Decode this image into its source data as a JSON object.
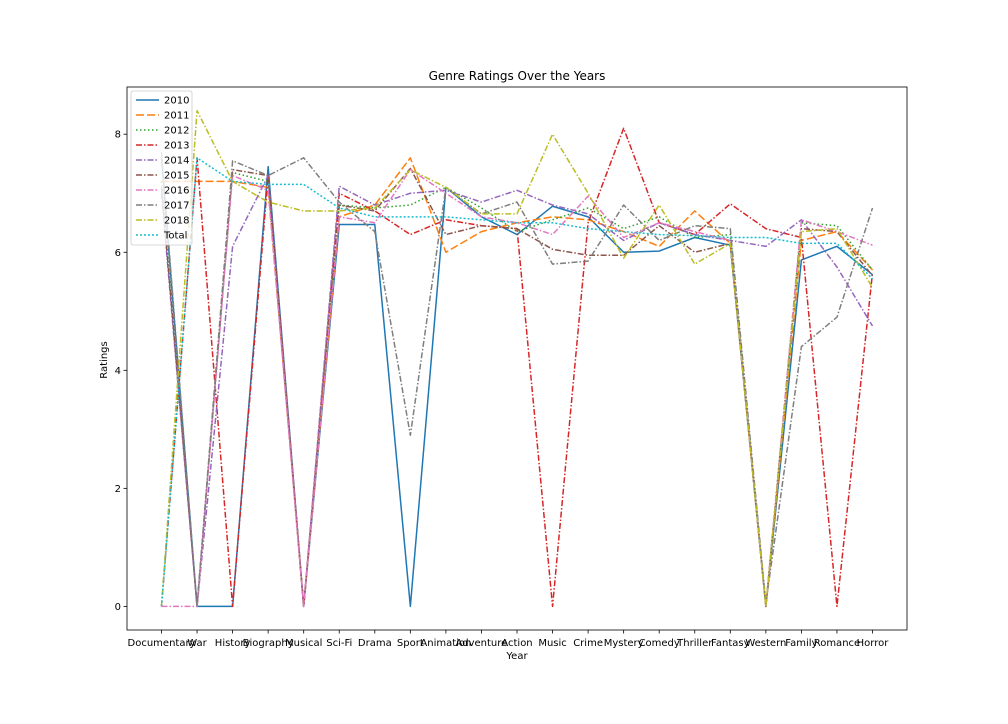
{
  "chart_data": {
    "type": "line",
    "title": "Genre Ratings Over the Years",
    "xlabel": "Year",
    "ylabel": "Ratings",
    "ylim": [
      -0.4,
      8.8
    ],
    "yticks": [
      0,
      2,
      4,
      6,
      8
    ],
    "grid": false,
    "legend_position": "top-left",
    "categories": [
      "Documentary",
      "War",
      "History",
      "Biography",
      "Musical",
      "Sci-Fi",
      "Drama",
      "Sport",
      "Animation",
      "Adventure",
      "Action",
      "Music",
      "Crime",
      "Mystery",
      "Comedy",
      "Thriller",
      "Fantasy",
      "Western",
      "Family",
      "Romance",
      "Horror"
    ],
    "series": [
      {
        "name": "2010",
        "color": "#1f77b4",
        "dash": "",
        "values": [
          7.6,
          0,
          0,
          7.45,
          0,
          6.47,
          6.47,
          0,
          7.1,
          6.6,
          6.3,
          6.78,
          6.6,
          6.0,
          6.02,
          6.25,
          6.12,
          0,
          5.87,
          6.1,
          5.62
        ]
      },
      {
        "name": "2011",
        "color": "#ff7f0e",
        "dash": "8,3",
        "values": [
          7.2,
          7.2,
          7.2,
          7.1,
          0,
          6.6,
          6.8,
          7.6,
          6.0,
          6.35,
          6.5,
          6.6,
          6.55,
          6.35,
          6.1,
          6.7,
          6.15,
          0,
          6.2,
          6.35,
          5.7
        ]
      },
      {
        "name": "2012",
        "color": "#2ca02c",
        "dash": "1.5,2.5",
        "values": [
          7.2,
          0,
          7.35,
          7.2,
          0,
          6.8,
          6.75,
          6.8,
          7.1,
          6.75,
          6.35,
          6.55,
          6.75,
          6.4,
          6.6,
          6.25,
          6.3,
          0,
          6.5,
          6.45,
          5.7
        ]
      },
      {
        "name": "2013",
        "color": "#d62728",
        "dash": "6,2,1.5,2",
        "values": [
          0,
          7.6,
          0,
          7.3,
          0,
          7.0,
          6.7,
          6.3,
          6.55,
          6.45,
          6.4,
          0,
          6.5,
          8.1,
          6.5,
          6.3,
          6.82,
          6.4,
          6.25,
          0,
          5.65
        ]
      },
      {
        "name": "2014",
        "color": "#9467bd",
        "dash": "6,2,1.5,2",
        "values": [
          7.0,
          0,
          6.1,
          7.3,
          0,
          7.12,
          6.8,
          7.0,
          7.05,
          6.85,
          7.05,
          6.8,
          6.65,
          6.2,
          6.5,
          6.3,
          6.2,
          6.1,
          6.55,
          5.75,
          4.75
        ]
      },
      {
        "name": "2015",
        "color": "#8c564b",
        "dash": "6,2,1.5,2",
        "values": [
          7.1,
          0,
          7.4,
          7.3,
          0,
          6.8,
          6.7,
          7.42,
          6.3,
          6.45,
          6.4,
          6.05,
          5.95,
          5.95,
          6.45,
          6.0,
          6.15,
          0,
          6.4,
          6.35,
          5.6
        ]
      },
      {
        "name": "2016",
        "color": "#e377c2",
        "dash": "6,2,1.5,2",
        "values": [
          0,
          0,
          7.3,
          7.05,
          0,
          6.6,
          6.5,
          7.4,
          7.0,
          6.6,
          6.5,
          6.3,
          6.95,
          6.25,
          6.5,
          6.35,
          6.2,
          0,
          6.55,
          6.35,
          6.12
        ]
      },
      {
        "name": "2017",
        "color": "#7f7f7f",
        "dash": "6,2,1.5,2",
        "values": [
          7.7,
          0,
          7.55,
          7.3,
          7.6,
          6.85,
          6.35,
          2.9,
          7.1,
          6.65,
          6.85,
          5.8,
          5.85,
          6.8,
          6.2,
          6.45,
          6.4,
          0.05,
          4.4,
          4.9,
          6.75
        ]
      },
      {
        "name": "2018",
        "color": "#bcbd22",
        "dash": "6,2,1.5,2",
        "values": [
          0,
          8.4,
          7.2,
          6.85,
          6.7,
          6.7,
          6.75,
          7.4,
          7.1,
          6.65,
          6.65,
          8.0,
          7.0,
          5.9,
          6.8,
          5.8,
          6.15,
          0,
          6.35,
          6.4,
          5.4
        ]
      },
      {
        "name": "Total",
        "color": "#17becf",
        "dash": "2,2",
        "values": [
          0,
          7.6,
          7.2,
          7.15,
          7.15,
          6.75,
          6.6,
          6.6,
          6.6,
          6.55,
          6.5,
          6.5,
          6.4,
          6.35,
          6.3,
          6.28,
          6.25,
          6.25,
          6.15,
          6.15,
          5.55
        ]
      }
    ]
  }
}
